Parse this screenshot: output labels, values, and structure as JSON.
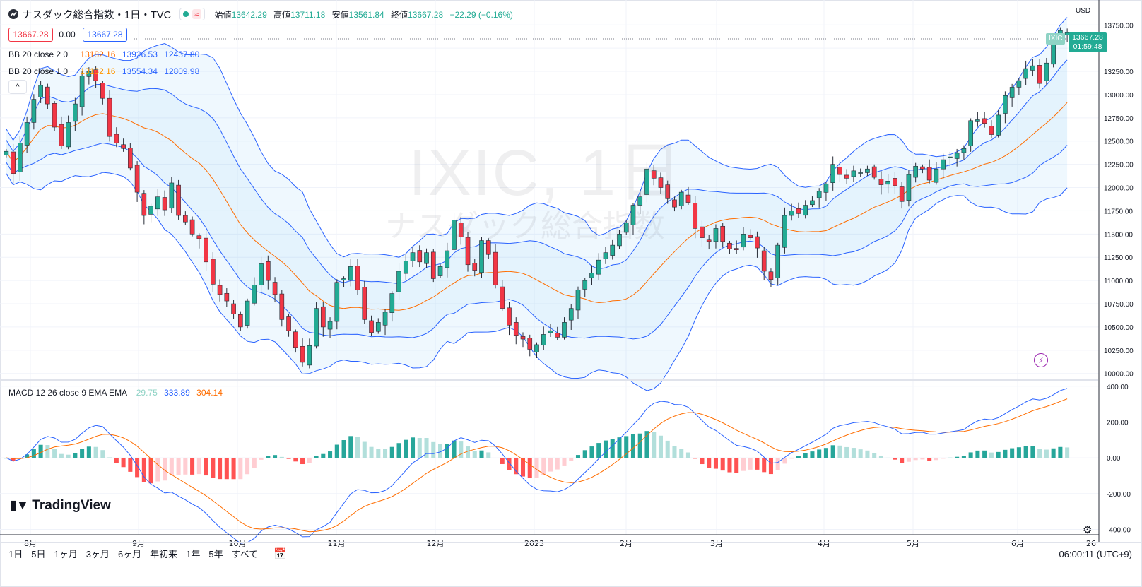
{
  "header": {
    "title": "ナスダック総合指数・1日・TVC",
    "ohlc": [
      {
        "label": "始値",
        "value": "13642.29"
      },
      {
        "label": "高値",
        "value": "13711.18"
      },
      {
        "label": "安値",
        "value": "13561.84"
      },
      {
        "label": "終値",
        "value": "13667.28"
      }
    ],
    "change": "−22.29 (−0.16%)",
    "wave_symbol": "≈"
  },
  "bid_box": "13667.28",
  "spread": "0.00",
  "ask_box": "13667.28",
  "indicators": {
    "bb2": {
      "label": "BB 20 close 2 0",
      "basis": "13182.16",
      "upper": "13926.53",
      "lower": "12437.80"
    },
    "bb1": {
      "label": "BB 20 close 1 0",
      "basis": "13182.16",
      "upper": "13554.34",
      "lower": "12809.98"
    },
    "macd": {
      "label": "MACD 12 26 close 9 EMA EMA",
      "hist": "29.75",
      "macd": "333.89",
      "signal": "304.14"
    }
  },
  "collapse_symbol": "^",
  "watermark": {
    "line1": "IXIC, 1日",
    "line2": "ナスダック総合指数"
  },
  "logo_text": "TradingView",
  "timeframes": [
    "1日",
    "5日",
    "1ヶ月",
    "3ヶ月",
    "6ヶ月",
    "年初来",
    "1年",
    "5年",
    "すべて"
  ],
  "clock": "06:00:11 (UTC+9)",
  "currency": "USD",
  "last_badge": {
    "symbol": "IXIC",
    "price": "13667.28",
    "countdown": "01:59:48"
  },
  "colors": {
    "up": "#22ab94",
    "down": "#f23645",
    "bb_outer": "#2962ff",
    "bb_basis": "#ff6d00",
    "hist_up_strong": "#26a69a",
    "hist_up_weak": "#b2dfdb",
    "hist_down_strong": "#ff5252",
    "hist_down_weak": "#ffcdd2"
  },
  "chart_data": {
    "type": "candlestick",
    "title": "ナスダック総合指数・1日・TVC",
    "x_ticks": [
      "8月",
      "9月",
      "10月",
      "11月",
      "12月",
      "2023",
      "2月",
      "3月",
      "4月",
      "5月",
      "6月",
      "26"
    ],
    "price_axis": {
      "ticks": [
        "10000.00",
        "10250.00",
        "10500.00",
        "10750.00",
        "11000.00",
        "11250.00",
        "11500.00",
        "11750.00",
        "12000.00",
        "12250.00",
        "12500.00",
        "12750.00",
        "13000.00",
        "13250.00",
        "13500.00",
        "13750.00"
      ],
      "ylim": [
        9975,
        13980
      ]
    },
    "macd_axis": {
      "ticks": [
        "400.00",
        "200.00",
        "0.00",
        "-200.00",
        "-400.00"
      ],
      "ylim": [
        -410,
        415
      ]
    },
    "close_path": [
      12390,
      12150,
      12480,
      12700,
      12950,
      13100,
      12900,
      12650,
      12450,
      12700,
      12900,
      13200,
      13250,
      13150,
      12960,
      12550,
      12480,
      12420,
      12210,
      11950,
      11700,
      11800,
      11900,
      11760,
      12050,
      11700,
      11630,
      11500,
      11450,
      11200,
      10960,
      10850,
      10780,
      10640,
      10500,
      10780,
      10950,
      11180,
      11000,
      10850,
      10580,
      10460,
      10280,
      10120,
      10300,
      10700,
      10500,
      10560,
      10980,
      11020,
      11150,
      10900,
      10580,
      10440,
      10550,
      10660,
      10860,
      11100,
      11210,
      11300,
      11200,
      11300,
      11020,
      11150,
      11320,
      11650,
      11470,
      11170,
      11110,
      11430,
      11280,
      10950,
      10700,
      10520,
      10410,
      10370,
      10260,
      10310,
      10420,
      10460,
      10390,
      10550,
      10700,
      10900,
      11000,
      11080,
      11220,
      11300,
      11380,
      11500,
      11620,
      11810,
      11900,
      12200,
      12100,
      12000,
      11880,
      11790,
      11950,
      11840,
      11560,
      11460,
      11420,
      11560,
      11420,
      11340,
      11330,
      11500,
      11460,
      11350,
      11100,
      11010,
      11380,
      11700,
      11750,
      11720,
      11810,
      11860,
      11960,
      12040,
      12250,
      12140,
      12100,
      12180,
      12160,
      12200,
      12110,
      12030,
      12070,
      12020,
      11850,
      12140,
      12230,
      12200,
      12080,
      12200,
      12300,
      12330,
      12370,
      12420,
      12720,
      12730,
      12690,
      12570,
      12780,
      12990,
      13080,
      13150,
      13280,
      13310,
      13120,
      13340,
      13550,
      13690,
      13667.28
    ],
    "bollinger_2sd": {
      "period": 20,
      "mult": 2,
      "basis_last": 13182.16,
      "upper_last": 13926.53,
      "lower_last": 12437.8
    },
    "bollinger_1sd": {
      "period": 20,
      "mult": 1,
      "basis_last": 13182.16,
      "upper_last": 13554.34,
      "lower_last": 12809.98
    },
    "macd": {
      "fast": 12,
      "slow": 26,
      "signal": 9,
      "hist_last": 29.75,
      "macd_last": 333.89,
      "signal_last": 304.14
    }
  }
}
